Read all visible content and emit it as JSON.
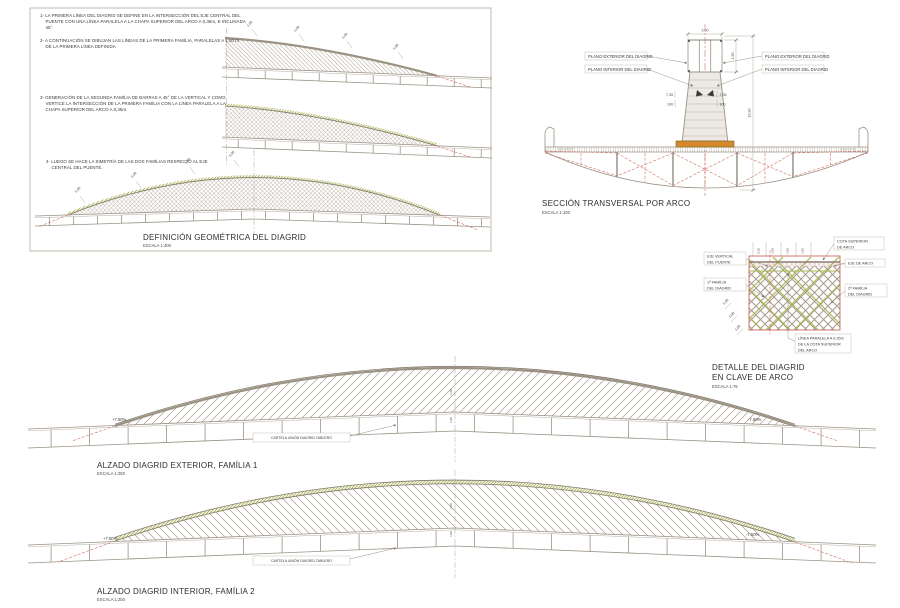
{
  "colors": {
    "line": "#9b9285",
    "green": "#a9b455",
    "red": "#c9625a",
    "orange": "#d5892b",
    "text": "#3a3a3a"
  },
  "dims": {
    "d100": "1,00",
    "d035": "0,35"
  },
  "panel": {
    "title": "DEFINICIÓN GEOMÉTRICA DEL DIAGRID",
    "scale": "ESCALA 1:400",
    "notes": [
      "1- LA PRIMERA LÍNEA DEL DIAGRID SE DEFINE EN LA INTERSECCIÓN DEL EJE CENTRAL DEL PUENTE CON UNA LÍNEA PARALELA A LA CHAPA SUPERIOR DEL ARCO A 0,35m, E INCLINADA 45°.",
      "2- A CONTINUACIÓN SE DIBUJAN LAS LÍNEAS DE LA PRIMERA FAMÍLIA, PARALELAS A 1,00 m  DE LA PRIMERA LÍNEA DEFINIDA",
      "3- GENERACIÓN DE LA SEGUNDA FAMÍLIA DE BARRAS A 45° DE LA VERTICAL Y COMO VERTICE LA INTERSECCIÓN DE LA PRIMERA FAMÍLIA CON LA LÍNEA PARALELA A LA CHAPA SUPERIOR DEL ARCO A 0,35m.",
      "4- LUEGO SE HACE LA SIMETRÍA DE LAS DOS FAMÍLIAS RESPECTO AL EJE CENTRAL DEL PUENTE."
    ]
  },
  "section": {
    "title": "SECCIÓN TRANSVERSAL POR ARCO",
    "scale": "ESCALA 1:100",
    "plano_exterior": "PLANO EXTERIOR DEL DIAGRID",
    "plano_interior": "PLANO INTERIOR DEL DIAGRID",
    "dim_top_width": "2,00",
    "dim_top_height": "1,50",
    "dim_side": "7,35",
    "dim_side_b": "100",
    "dim_total_height": "10,30"
  },
  "detail": {
    "title_1": "DETALLE DEL DIAGRID",
    "title_2": "EN CLAVE DE ARCO",
    "scale": "ESCALA 1:75",
    "cota_superior_1": "COTA SUPERIOR",
    "cota_superior_2": "DE ARCO",
    "eje_vertical_1": "EJE VERTICAL",
    "eje_vertical_2": "DEL PUENTE",
    "eje_arco": "EJE DE ARCO",
    "familia1_1": "1ª FAMÍLIA",
    "familia1_2": "DEL DIAGRID",
    "familia2_1": "2ª FAMÍLIA",
    "familia2_2": "DEL DIAGRID",
    "linea_1": "LÍNEA PARALELA A 0,35m",
    "linea_2": "DE LA COTA SUPERIOR",
    "linea_3": "DEL ARCO"
  },
  "elevation1": {
    "title": "ALZADO DIAGRID EXTERIOR, FAMÍLIA 1",
    "scale": "ESCALA 1:250",
    "slope_left": "+7.50%",
    "slope_right": "-7.50%",
    "cartela": "CARTELA UNIÓN DIAGRID-TABLERO"
  },
  "elevation2": {
    "title": "ALZADO DIAGRID INTERIOR, FAMÍLIA 2",
    "scale": "ESCALA 1:250",
    "slope_left": "+7.50%",
    "slope_right": "-7.50%",
    "cartela": "CARTELA UNIÓN DIAGRID-TABLERO"
  }
}
